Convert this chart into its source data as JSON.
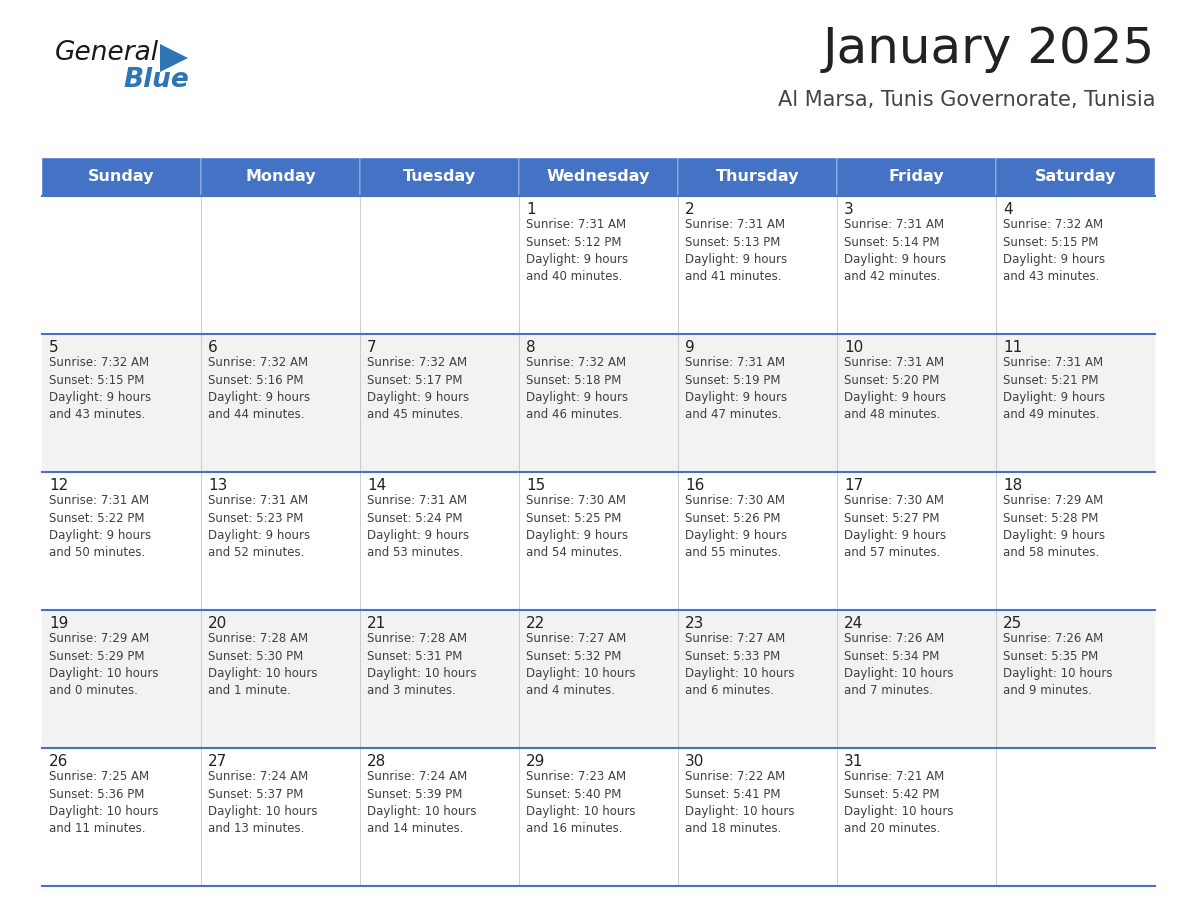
{
  "title": "January 2025",
  "subtitle": "Al Marsa, Tunis Governorate, Tunisia",
  "days_of_week": [
    "Sunday",
    "Monday",
    "Tuesday",
    "Wednesday",
    "Thursday",
    "Friday",
    "Saturday"
  ],
  "header_bg": "#4472C4",
  "header_text": "#FFFFFF",
  "row_bg_odd": "#FFFFFF",
  "row_bg_even": "#F2F2F2",
  "cell_text_color": "#404040",
  "day_num_color": "#222222",
  "divider_color": "#4472C4",
  "title_color": "#222222",
  "subtitle_color": "#444444",
  "logo_general_color": "#1a1a1a",
  "logo_blue_color": "#2E75B6",
  "logo_triangle_color": "#2E75B6",
  "calendar_data": [
    [
      {
        "day": null,
        "info": null
      },
      {
        "day": null,
        "info": null
      },
      {
        "day": null,
        "info": null
      },
      {
        "day": 1,
        "info": "Sunrise: 7:31 AM\nSunset: 5:12 PM\nDaylight: 9 hours\nand 40 minutes."
      },
      {
        "day": 2,
        "info": "Sunrise: 7:31 AM\nSunset: 5:13 PM\nDaylight: 9 hours\nand 41 minutes."
      },
      {
        "day": 3,
        "info": "Sunrise: 7:31 AM\nSunset: 5:14 PM\nDaylight: 9 hours\nand 42 minutes."
      },
      {
        "day": 4,
        "info": "Sunrise: 7:32 AM\nSunset: 5:15 PM\nDaylight: 9 hours\nand 43 minutes."
      }
    ],
    [
      {
        "day": 5,
        "info": "Sunrise: 7:32 AM\nSunset: 5:15 PM\nDaylight: 9 hours\nand 43 minutes."
      },
      {
        "day": 6,
        "info": "Sunrise: 7:32 AM\nSunset: 5:16 PM\nDaylight: 9 hours\nand 44 minutes."
      },
      {
        "day": 7,
        "info": "Sunrise: 7:32 AM\nSunset: 5:17 PM\nDaylight: 9 hours\nand 45 minutes."
      },
      {
        "day": 8,
        "info": "Sunrise: 7:32 AM\nSunset: 5:18 PM\nDaylight: 9 hours\nand 46 minutes."
      },
      {
        "day": 9,
        "info": "Sunrise: 7:31 AM\nSunset: 5:19 PM\nDaylight: 9 hours\nand 47 minutes."
      },
      {
        "day": 10,
        "info": "Sunrise: 7:31 AM\nSunset: 5:20 PM\nDaylight: 9 hours\nand 48 minutes."
      },
      {
        "day": 11,
        "info": "Sunrise: 7:31 AM\nSunset: 5:21 PM\nDaylight: 9 hours\nand 49 minutes."
      }
    ],
    [
      {
        "day": 12,
        "info": "Sunrise: 7:31 AM\nSunset: 5:22 PM\nDaylight: 9 hours\nand 50 minutes."
      },
      {
        "day": 13,
        "info": "Sunrise: 7:31 AM\nSunset: 5:23 PM\nDaylight: 9 hours\nand 52 minutes."
      },
      {
        "day": 14,
        "info": "Sunrise: 7:31 AM\nSunset: 5:24 PM\nDaylight: 9 hours\nand 53 minutes."
      },
      {
        "day": 15,
        "info": "Sunrise: 7:30 AM\nSunset: 5:25 PM\nDaylight: 9 hours\nand 54 minutes."
      },
      {
        "day": 16,
        "info": "Sunrise: 7:30 AM\nSunset: 5:26 PM\nDaylight: 9 hours\nand 55 minutes."
      },
      {
        "day": 17,
        "info": "Sunrise: 7:30 AM\nSunset: 5:27 PM\nDaylight: 9 hours\nand 57 minutes."
      },
      {
        "day": 18,
        "info": "Sunrise: 7:29 AM\nSunset: 5:28 PM\nDaylight: 9 hours\nand 58 minutes."
      }
    ],
    [
      {
        "day": 19,
        "info": "Sunrise: 7:29 AM\nSunset: 5:29 PM\nDaylight: 10 hours\nand 0 minutes."
      },
      {
        "day": 20,
        "info": "Sunrise: 7:28 AM\nSunset: 5:30 PM\nDaylight: 10 hours\nand 1 minute."
      },
      {
        "day": 21,
        "info": "Sunrise: 7:28 AM\nSunset: 5:31 PM\nDaylight: 10 hours\nand 3 minutes."
      },
      {
        "day": 22,
        "info": "Sunrise: 7:27 AM\nSunset: 5:32 PM\nDaylight: 10 hours\nand 4 minutes."
      },
      {
        "day": 23,
        "info": "Sunrise: 7:27 AM\nSunset: 5:33 PM\nDaylight: 10 hours\nand 6 minutes."
      },
      {
        "day": 24,
        "info": "Sunrise: 7:26 AM\nSunset: 5:34 PM\nDaylight: 10 hours\nand 7 minutes."
      },
      {
        "day": 25,
        "info": "Sunrise: 7:26 AM\nSunset: 5:35 PM\nDaylight: 10 hours\nand 9 minutes."
      }
    ],
    [
      {
        "day": 26,
        "info": "Sunrise: 7:25 AM\nSunset: 5:36 PM\nDaylight: 10 hours\nand 11 minutes."
      },
      {
        "day": 27,
        "info": "Sunrise: 7:24 AM\nSunset: 5:37 PM\nDaylight: 10 hours\nand 13 minutes."
      },
      {
        "day": 28,
        "info": "Sunrise: 7:24 AM\nSunset: 5:39 PM\nDaylight: 10 hours\nand 14 minutes."
      },
      {
        "day": 29,
        "info": "Sunrise: 7:23 AM\nSunset: 5:40 PM\nDaylight: 10 hours\nand 16 minutes."
      },
      {
        "day": 30,
        "info": "Sunrise: 7:22 AM\nSunset: 5:41 PM\nDaylight: 10 hours\nand 18 minutes."
      },
      {
        "day": 31,
        "info": "Sunrise: 7:21 AM\nSunset: 5:42 PM\nDaylight: 10 hours\nand 20 minutes."
      },
      {
        "day": null,
        "info": null
      }
    ]
  ]
}
